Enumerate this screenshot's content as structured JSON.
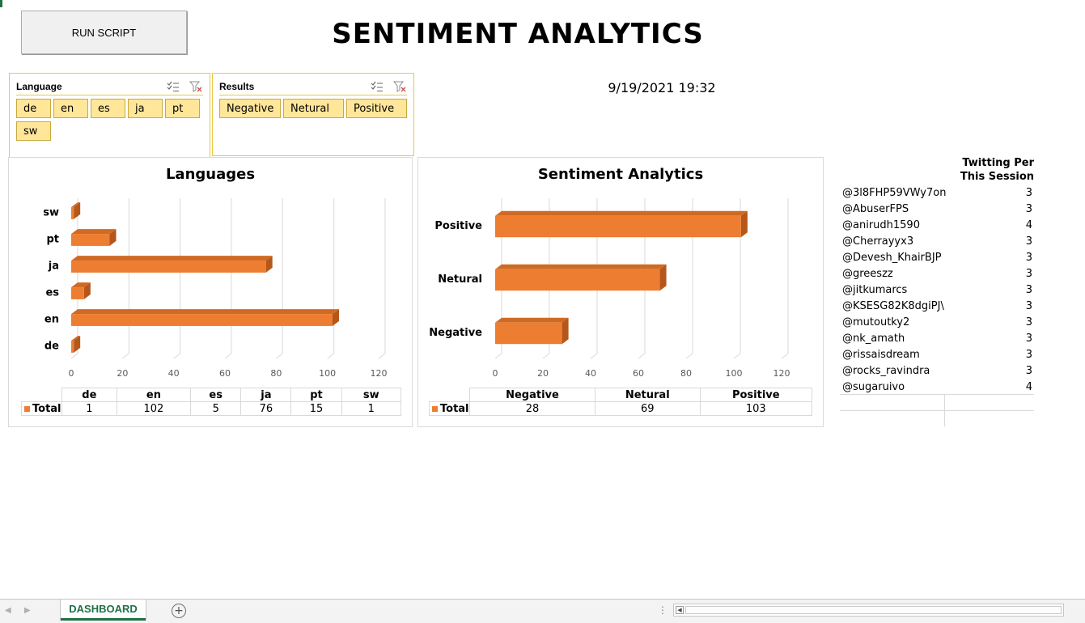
{
  "dashboard": {
    "run_button": "RUN SCRIPT",
    "title": "SENTIMENT ANALYTICS",
    "datetime": "9/19/2021 19:32"
  },
  "slicers": {
    "language": {
      "title": "Language",
      "items": [
        "de",
        "en",
        "es",
        "ja",
        "pt",
        "sw"
      ]
    },
    "results": {
      "title": "Results",
      "items": [
        "Negative",
        "Netural",
        "Positive"
      ]
    }
  },
  "chart_data": [
    {
      "type": "bar",
      "orientation": "horizontal",
      "title": "Languages",
      "categories": [
        "de",
        "en",
        "es",
        "ja",
        "pt",
        "sw"
      ],
      "series": [
        {
          "name": "Total",
          "values": [
            1,
            102,
            5,
            76,
            15,
            1
          ]
        }
      ],
      "xlim": [
        0,
        120
      ],
      "xticks": [
        0,
        20,
        40,
        60,
        80,
        100,
        120
      ],
      "color": "#ed7d31",
      "grid": true,
      "data_table": true
    },
    {
      "type": "bar",
      "orientation": "horizontal",
      "title": "Sentiment Analytics",
      "categories": [
        "Negative",
        "Netural",
        "Positive"
      ],
      "series": [
        {
          "name": "Total",
          "values": [
            28,
            69,
            103
          ]
        }
      ],
      "xlim": [
        0,
        120
      ],
      "xticks": [
        0,
        20,
        40,
        60,
        80,
        100,
        120
      ],
      "color": "#ed7d31",
      "grid": true,
      "data_table": true
    }
  ],
  "users_table": {
    "header_line1": "Twitting Per",
    "header_line2": "This Session",
    "rows": [
      {
        "user": "@3l8FHP59VWy7on",
        "count": "3"
      },
      {
        "user": "@AbuserFPS",
        "count": "3"
      },
      {
        "user": "@anirudh1590",
        "count": "4"
      },
      {
        "user": "@Cherrayyx3",
        "count": "3"
      },
      {
        "user": "@Devesh_KhairBJP",
        "count": "3"
      },
      {
        "user": "@greeszz",
        "count": "3"
      },
      {
        "user": "@jitkumarcs",
        "count": "3"
      },
      {
        "user": "@KSESG82K8dgiPJ\\",
        "count": "3"
      },
      {
        "user": "@mutoutky2",
        "count": "3"
      },
      {
        "user": "@nk_amath",
        "count": "3"
      },
      {
        "user": "@rissaisdream",
        "count": "3"
      },
      {
        "user": "@rocks_ravindra",
        "count": "3"
      },
      {
        "user": "@sugaruivo",
        "count": "4"
      }
    ]
  },
  "tabbar": {
    "active_sheet": "DASHBOARD",
    "add_sheet": "+"
  }
}
